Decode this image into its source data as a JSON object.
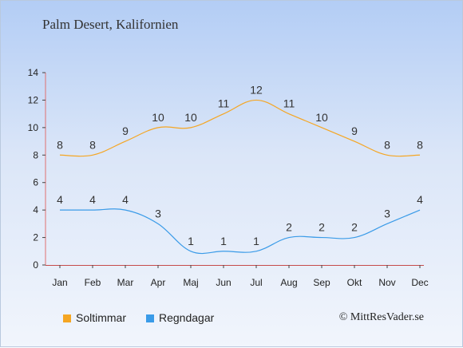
{
  "chart_data": {
    "type": "line",
    "title": "Palm Desert, Kalifornien",
    "xlabel": "",
    "ylabel": "",
    "categories": [
      "Jan",
      "Feb",
      "Mar",
      "Apr",
      "Maj",
      "Jun",
      "Jul",
      "Aug",
      "Sep",
      "Okt",
      "Nov",
      "Dec"
    ],
    "ylim": [
      0,
      14
    ],
    "yticks": [
      0,
      2,
      4,
      6,
      8,
      10,
      12,
      14
    ],
    "grid": false,
    "legend_position": "bottom-left",
    "series": [
      {
        "name": "Soltimmar",
        "color": "#f5a623",
        "values": [
          8,
          8,
          9,
          10,
          10,
          11,
          12,
          11,
          10,
          9,
          8,
          8
        ]
      },
      {
        "name": "Regndagar",
        "color": "#3a9be8",
        "values": [
          4,
          4,
          4,
          3,
          1,
          1,
          1,
          2,
          2,
          2,
          3,
          4
        ]
      }
    ]
  },
  "copyright": "© MittResVader.se"
}
